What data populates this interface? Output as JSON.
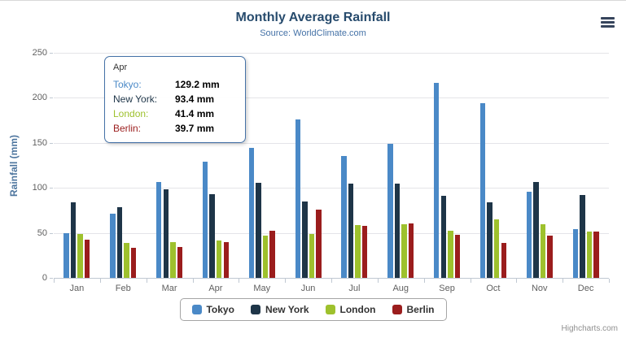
{
  "chart": {
    "title": "Monthly Average Rainfall",
    "subtitle": "Source: WorldClimate.com",
    "credits": "Highcharts.com"
  },
  "colors": {
    "title": "#274b6d",
    "subtitle": "#4572a7",
    "axis_label": "#606060",
    "axis_title": "#4d759e",
    "gridline": "#e4e4e8",
    "axis_line": "#c0c8d2",
    "tooltip_border": "#4572a7",
    "legend_border": "#a5a5a5",
    "credits": "#909090"
  },
  "chart_data": {
    "type": "bar",
    "title": "Monthly Average Rainfall",
    "subtitle": "Source: WorldClimate.com",
    "categories": [
      "Jan",
      "Feb",
      "Mar",
      "Apr",
      "May",
      "Jun",
      "Jul",
      "Aug",
      "Sep",
      "Oct",
      "Nov",
      "Dec"
    ],
    "series": [
      {
        "name": "Tokyo",
        "color": "#4a89c7",
        "values": [
          49.9,
          71.5,
          106.4,
          129.2,
          144.0,
          176.0,
          135.6,
          148.5,
          216.4,
          194.1,
          95.6,
          54.4
        ]
      },
      {
        "name": "New York",
        "color": "#1e3548",
        "values": [
          83.6,
          78.8,
          98.5,
          93.4,
          106.0,
          84.5,
          105.0,
          104.3,
          91.2,
          83.5,
          106.6,
          92.3
        ]
      },
      {
        "name": "London",
        "color": "#9ec12d",
        "values": [
          48.9,
          38.8,
          39.3,
          41.4,
          47.0,
          48.3,
          59.0,
          59.6,
          52.4,
          65.2,
          59.3,
          51.2
        ]
      },
      {
        "name": "Berlin",
        "color": "#9b1d1d",
        "values": [
          42.4,
          33.2,
          34.5,
          39.7,
          52.6,
          75.5,
          57.4,
          60.4,
          47.6,
          39.1,
          46.8,
          51.1
        ]
      }
    ],
    "xlabel": "",
    "ylabel": "Rainfall (mm)",
    "ylim": [
      0,
      250
    ],
    "yticks": [
      0,
      50,
      100,
      150,
      200,
      250
    ],
    "grid": true,
    "legend_position": "bottom"
  },
  "tooltip": {
    "header": "Apr",
    "rows": [
      {
        "name": "Tokyo:",
        "value": "129.2 mm",
        "color": "#4a89c7"
      },
      {
        "name": "New York:",
        "value": "93.4 mm",
        "color": "#1e3548"
      },
      {
        "name": "London:",
        "value": "41.4 mm",
        "color": "#9ec12d"
      },
      {
        "name": "Berlin:",
        "value": "39.7 mm",
        "color": "#9b1d1d"
      }
    ]
  }
}
